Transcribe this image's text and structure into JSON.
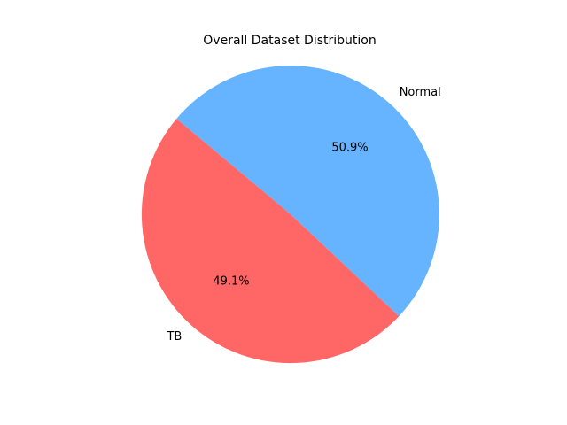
{
  "chart_data": {
    "type": "pie",
    "title": "Overall Dataset Distribution",
    "categories": [
      "TB",
      "Normal"
    ],
    "values": [
      49.1,
      50.9
    ],
    "percent_labels": [
      "49.1%",
      "50.9%"
    ],
    "colors": [
      "#ff6666",
      "#66b3ff"
    ],
    "legend": "none"
  }
}
